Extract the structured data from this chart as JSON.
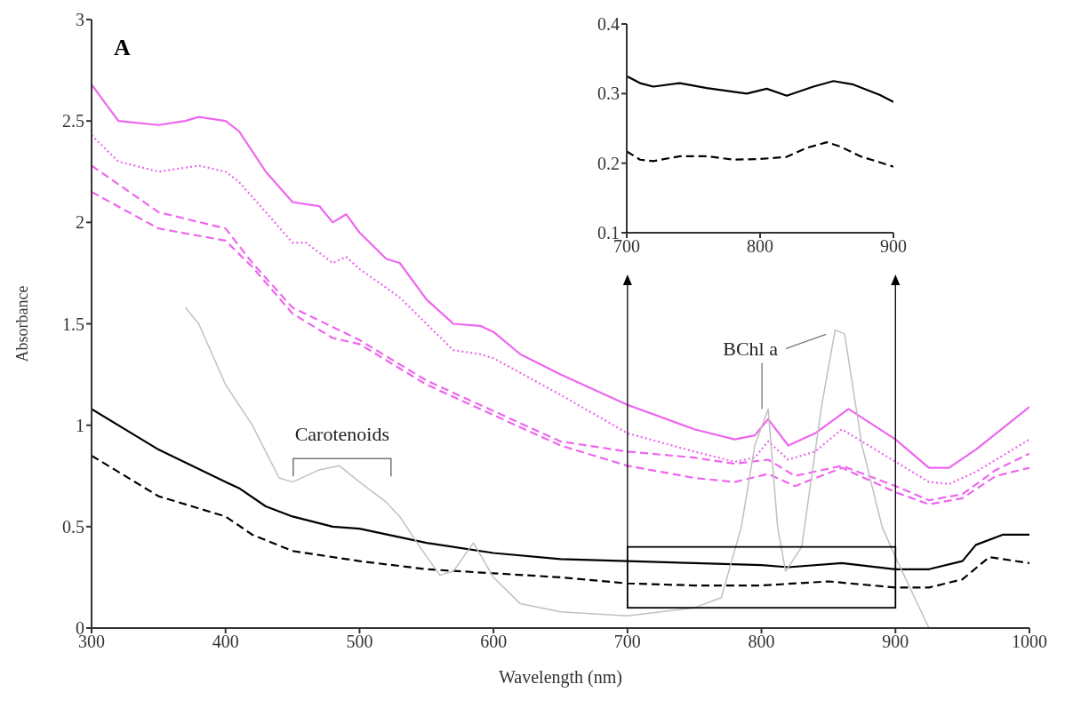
{
  "chart_data": [
    {
      "type": "line",
      "xlabel": "Wavelength (nm)",
      "ylabel": "Absorbance",
      "xlim": [
        300,
        1000
      ],
      "xticks": [
        300,
        400,
        500,
        600,
        700,
        800,
        900,
        1000
      ],
      "ylim": [
        0,
        3
      ],
      "yticks": [
        0,
        0.5,
        1,
        1.5,
        2,
        2.5,
        3
      ],
      "marker": "none",
      "annotations": [
        "A",
        {
          "text": "Carotenoids",
          "x": 487,
          "y": 0.8
        },
        {
          "text": "BChl a",
          "x": 805,
          "y": 1.08
        }
      ],
      "series": [
        {
          "color": "#ee66ee",
          "line_style": "solid",
          "x": [
            300,
            320,
            350,
            370,
            380,
            400,
            410,
            430,
            450,
            470,
            480,
            490,
            500,
            520,
            530,
            550,
            570,
            590,
            600,
            620,
            650,
            700,
            750,
            780,
            795,
            805,
            820,
            840,
            865,
            900,
            925,
            940,
            960,
            1000
          ],
          "values": [
            2.68,
            2.5,
            2.48,
            2.5,
            2.52,
            2.5,
            2.45,
            2.25,
            2.1,
            2.08,
            2.0,
            2.04,
            1.95,
            1.82,
            1.8,
            1.62,
            1.5,
            1.49,
            1.46,
            1.35,
            1.25,
            1.1,
            0.98,
            0.93,
            0.95,
            1.03,
            0.9,
            0.96,
            1.08,
            0.93,
            0.79,
            0.79,
            0.88,
            1.09
          ]
        },
        {
          "color": "#ee66ee",
          "line_style": "dotted",
          "x": [
            300,
            320,
            350,
            380,
            400,
            410,
            430,
            450,
            460,
            480,
            490,
            500,
            530,
            550,
            570,
            590,
            600,
            650,
            700,
            750,
            780,
            795,
            805,
            820,
            840,
            860,
            900,
            925,
            940,
            960,
            1000
          ],
          "values": [
            2.43,
            2.3,
            2.25,
            2.28,
            2.25,
            2.2,
            2.05,
            1.9,
            1.9,
            1.8,
            1.83,
            1.77,
            1.63,
            1.5,
            1.37,
            1.35,
            1.33,
            1.15,
            0.96,
            0.87,
            0.82,
            0.84,
            0.92,
            0.83,
            0.87,
            0.98,
            0.82,
            0.72,
            0.71,
            0.77,
            0.93
          ]
        },
        {
          "color": "#ee66ee",
          "line_style": "dashed",
          "x": [
            300,
            350,
            400,
            420,
            450,
            500,
            550,
            600,
            650,
            700,
            750,
            780,
            805,
            825,
            860,
            900,
            925,
            950,
            975,
            1000
          ],
          "values": [
            2.28,
            2.05,
            1.97,
            1.8,
            1.58,
            1.42,
            1.22,
            1.07,
            0.92,
            0.87,
            0.84,
            0.81,
            0.83,
            0.75,
            0.8,
            0.7,
            0.63,
            0.66,
            0.78,
            0.86
          ]
        },
        {
          "color": "#ee66ee",
          "line_style": "dashed",
          "x": [
            300,
            350,
            400,
            420,
            450,
            480,
            500,
            550,
            600,
            650,
            700,
            750,
            780,
            805,
            825,
            860,
            900,
            925,
            950,
            975,
            1000
          ],
          "values": [
            2.15,
            1.97,
            1.91,
            1.78,
            1.55,
            1.43,
            1.4,
            1.2,
            1.05,
            0.9,
            0.8,
            0.74,
            0.72,
            0.76,
            0.7,
            0.79,
            0.67,
            0.61,
            0.64,
            0.75,
            0.79
          ]
        },
        {
          "color": "#000000",
          "line_style": "solid",
          "x": [
            300,
            350,
            400,
            410,
            430,
            450,
            480,
            500,
            550,
            600,
            650,
            700,
            750,
            800,
            820,
            860,
            900,
            925,
            950,
            960,
            980,
            1000
          ],
          "values": [
            1.08,
            0.88,
            0.72,
            0.69,
            0.6,
            0.55,
            0.5,
            0.49,
            0.42,
            0.37,
            0.34,
            0.33,
            0.32,
            0.31,
            0.3,
            0.32,
            0.29,
            0.29,
            0.33,
            0.41,
            0.46,
            0.46
          ]
        },
        {
          "color": "#000000",
          "line_style": "dashed",
          "x": [
            300,
            350,
            400,
            420,
            450,
            500,
            550,
            600,
            650,
            700,
            750,
            800,
            850,
            900,
            925,
            950,
            970,
            1000
          ],
          "values": [
            0.85,
            0.65,
            0.55,
            0.46,
            0.38,
            0.33,
            0.29,
            0.27,
            0.25,
            0.22,
            0.21,
            0.21,
            0.23,
            0.2,
            0.2,
            0.24,
            0.35,
            0.32
          ]
        },
        {
          "color": "#c0c0c0",
          "line_style": "solid",
          "x": [
            370,
            380,
            400,
            420,
            440,
            450,
            470,
            485,
            500,
            520,
            530,
            545,
            560,
            570,
            585,
            600,
            620,
            650,
            700,
            750,
            770,
            785,
            795,
            805,
            812,
            818,
            830,
            845,
            855,
            862,
            875,
            890,
            900,
            925
          ],
          "values": [
            1.58,
            1.5,
            1.2,
            1.0,
            0.74,
            0.72,
            0.78,
            0.8,
            0.72,
            0.62,
            0.55,
            0.4,
            0.26,
            0.28,
            0.42,
            0.25,
            0.12,
            0.08,
            0.06,
            0.1,
            0.15,
            0.5,
            0.9,
            1.08,
            0.5,
            0.28,
            0.4,
            1.1,
            1.47,
            1.45,
            0.9,
            0.5,
            0.35,
            0.0
          ]
        }
      ]
    },
    {
      "type": "line",
      "xlim": [
        700,
        900
      ],
      "xticks": [
        700,
        800,
        900
      ],
      "ylim": [
        0.1,
        0.4
      ],
      "yticks": [
        0.1,
        0.2,
        0.3,
        0.4
      ],
      "marker": "none",
      "series": [
        {
          "color": "#000000",
          "line_style": "solid",
          "x": [
            700,
            710,
            720,
            740,
            760,
            790,
            805,
            820,
            840,
            855,
            870,
            890,
            900
          ],
          "values": [
            0.325,
            0.315,
            0.31,
            0.315,
            0.308,
            0.3,
            0.307,
            0.297,
            0.31,
            0.318,
            0.313,
            0.298,
            0.288
          ]
        },
        {
          "color": "#000000",
          "line_style": "dashed",
          "x": [
            700,
            710,
            720,
            740,
            760,
            780,
            800,
            820,
            835,
            850,
            860,
            875,
            900
          ],
          "values": [
            0.217,
            0.205,
            0.203,
            0.21,
            0.21,
            0.205,
            0.206,
            0.209,
            0.222,
            0.23,
            0.224,
            0.21,
            0.195
          ]
        }
      ]
    }
  ]
}
